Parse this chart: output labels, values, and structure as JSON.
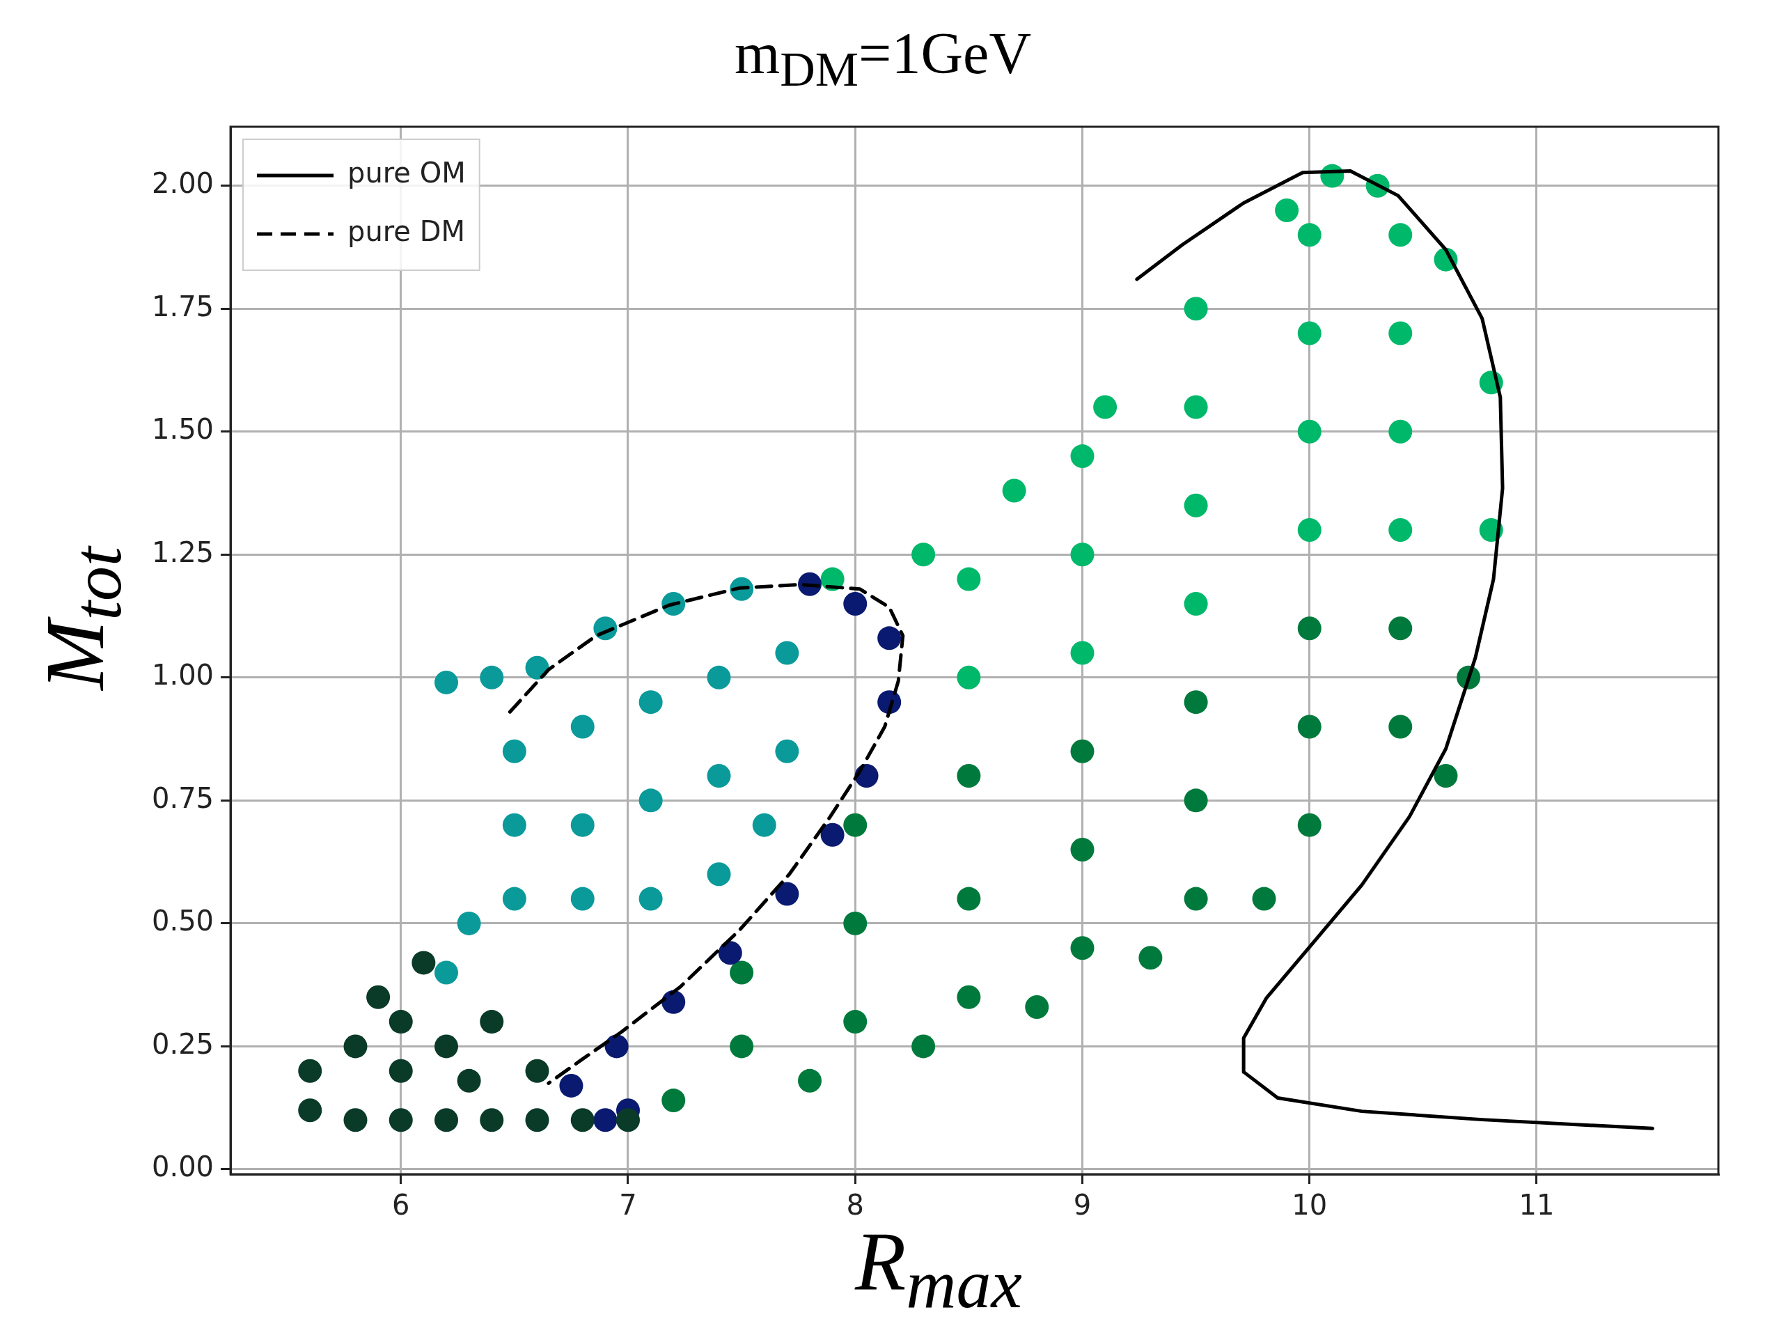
{
  "chart_data": {
    "type": "scatter",
    "title": "m$_{DM}$=1GeV",
    "xlabel": "R$_{max}$",
    "ylabel": "M$_{tot}$",
    "xlim": [
      5.25,
      11.8
    ],
    "ylim": [
      -0.01,
      2.12
    ],
    "xticks": [
      6,
      7,
      8,
      9,
      10,
      11
    ],
    "yticks": [
      {
        "value": 0,
        "label": "0.00"
      },
      {
        "value": 0.25,
        "label": "0.25"
      },
      {
        "value": 0.5,
        "label": "0.50"
      },
      {
        "value": 0.75,
        "label": "0.75"
      },
      {
        "value": 1,
        "label": "1.00"
      },
      {
        "value": 1.25,
        "label": "1.25"
      },
      {
        "value": 1.5,
        "label": "1.50"
      },
      {
        "value": 1.75,
        "label": "1.75"
      },
      {
        "value": 2,
        "label": "2.00"
      }
    ],
    "grid": true,
    "legend": "top left",
    "series": [
      {
        "marker": "circle",
        "color": "#0a3a28",
        "x": [
          5.6,
          5.6,
          5.8,
          5.8,
          6.0,
          6.0,
          6.2,
          6.2,
          6.4,
          6.4,
          6.6,
          6.6,
          6.8,
          7.0,
          6.0,
          6.3,
          5.9,
          6.1
        ],
        "values": [
          0.12,
          0.2,
          0.1,
          0.25,
          0.1,
          0.3,
          0.1,
          0.25,
          0.1,
          0.3,
          0.1,
          0.2,
          0.1,
          0.1,
          0.2,
          0.18,
          0.35,
          0.42
        ]
      },
      {
        "marker": "circle",
        "color": "#0a9a9a",
        "x": [
          6.2,
          6.4,
          6.6,
          6.9,
          7.2,
          7.5,
          6.5,
          6.5,
          6.8,
          6.8,
          7.1,
          7.1,
          7.4,
          7.4,
          7.7,
          7.7,
          6.5,
          6.8,
          7.1,
          6.3,
          6.2,
          7.4,
          7.6
        ],
        "values": [
          0.99,
          1.0,
          1.02,
          1.1,
          1.15,
          1.18,
          0.85,
          0.7,
          0.9,
          0.7,
          0.95,
          0.75,
          1.0,
          0.8,
          1.05,
          0.85,
          0.55,
          0.55,
          0.55,
          0.5,
          0.4,
          0.6,
          0.7
        ]
      },
      {
        "marker": "circle",
        "color": "#0a1a70",
        "x": [
          7.8,
          8.0,
          8.15,
          8.15,
          8.05,
          7.9,
          7.7,
          7.45,
          7.2,
          6.95,
          6.75,
          6.9,
          7.0
        ],
        "values": [
          1.19,
          1.15,
          1.08,
          0.95,
          0.8,
          0.68,
          0.56,
          0.44,
          0.34,
          0.25,
          0.17,
          0.1,
          0.12
        ]
      },
      {
        "marker": "circle",
        "color": "#007a3c",
        "x": [
          7.2,
          7.5,
          7.5,
          7.8,
          8.0,
          8.0,
          8.0,
          8.5,
          8.5,
          8.5,
          9.0,
          9.0,
          9.0,
          9.5,
          9.5,
          9.5,
          10.0,
          10.0,
          10.0,
          10.4,
          10.4,
          10.6,
          10.7,
          8.3,
          8.8,
          9.3,
          9.8
        ],
        "values": [
          0.14,
          0.25,
          0.4,
          0.18,
          0.3,
          0.5,
          0.7,
          0.35,
          0.55,
          0.8,
          0.45,
          0.65,
          0.85,
          0.55,
          0.75,
          0.95,
          0.7,
          0.9,
          1.1,
          0.9,
          1.1,
          0.8,
          1.0,
          0.25,
          0.33,
          0.43,
          0.55
        ]
      },
      {
        "marker": "circle",
        "color": "#00b86a",
        "x": [
          8.5,
          8.5,
          9.0,
          9.0,
          9.0,
          9.5,
          9.5,
          9.5,
          10.0,
          10.0,
          10.0,
          10.0,
          10.4,
          10.4,
          10.4,
          10.4,
          10.8,
          10.8,
          10.6,
          10.3,
          10.1,
          9.9,
          9.5,
          9.1,
          8.7,
          8.3,
          7.9
        ],
        "values": [
          1.0,
          1.2,
          1.05,
          1.25,
          1.45,
          1.15,
          1.35,
          1.55,
          1.3,
          1.5,
          1.7,
          1.9,
          1.3,
          1.5,
          1.7,
          1.9,
          1.3,
          1.6,
          1.85,
          2.0,
          2.02,
          1.95,
          1.75,
          1.55,
          1.38,
          1.25,
          1.2
        ]
      },
      {
        "type": "line",
        "name": "pure OM",
        "color": "#000000",
        "line_style": "solid",
        "marker": "none",
        "x": [
          9.24,
          9.44,
          9.71,
          9.97,
          10.18,
          10.39,
          10.6,
          10.76,
          10.84,
          10.85,
          10.81,
          10.73,
          10.6,
          10.44,
          10.23,
          10.02,
          9.81,
          9.71,
          9.71,
          9.86,
          10.23,
          10.76,
          11.51
        ],
        "values": [
          1.81,
          1.88,
          1.965,
          2.027,
          2.03,
          1.98,
          1.87,
          1.73,
          1.57,
          1.385,
          1.2,
          1.04,
          0.855,
          0.717,
          0.578,
          0.463,
          0.348,
          0.267,
          0.198,
          0.145,
          0.118,
          0.101,
          0.083
        ]
      },
      {
        "type": "line",
        "name": "pure DM",
        "color": "#000000",
        "line_style": "dashed",
        "marker": "none",
        "x": [
          6.48,
          6.65,
          6.86,
          7.18,
          7.49,
          7.76,
          8.02,
          8.15,
          8.21,
          8.19,
          8.13,
          8.02,
          7.89,
          7.71,
          7.49,
          7.23,
          6.97,
          6.79,
          6.65
        ],
        "values": [
          0.93,
          1.016,
          1.085,
          1.147,
          1.182,
          1.189,
          1.18,
          1.143,
          1.085,
          0.993,
          0.9,
          0.809,
          0.717,
          0.6,
          0.486,
          0.371,
          0.279,
          0.221,
          0.175
        ]
      }
    ]
  }
}
